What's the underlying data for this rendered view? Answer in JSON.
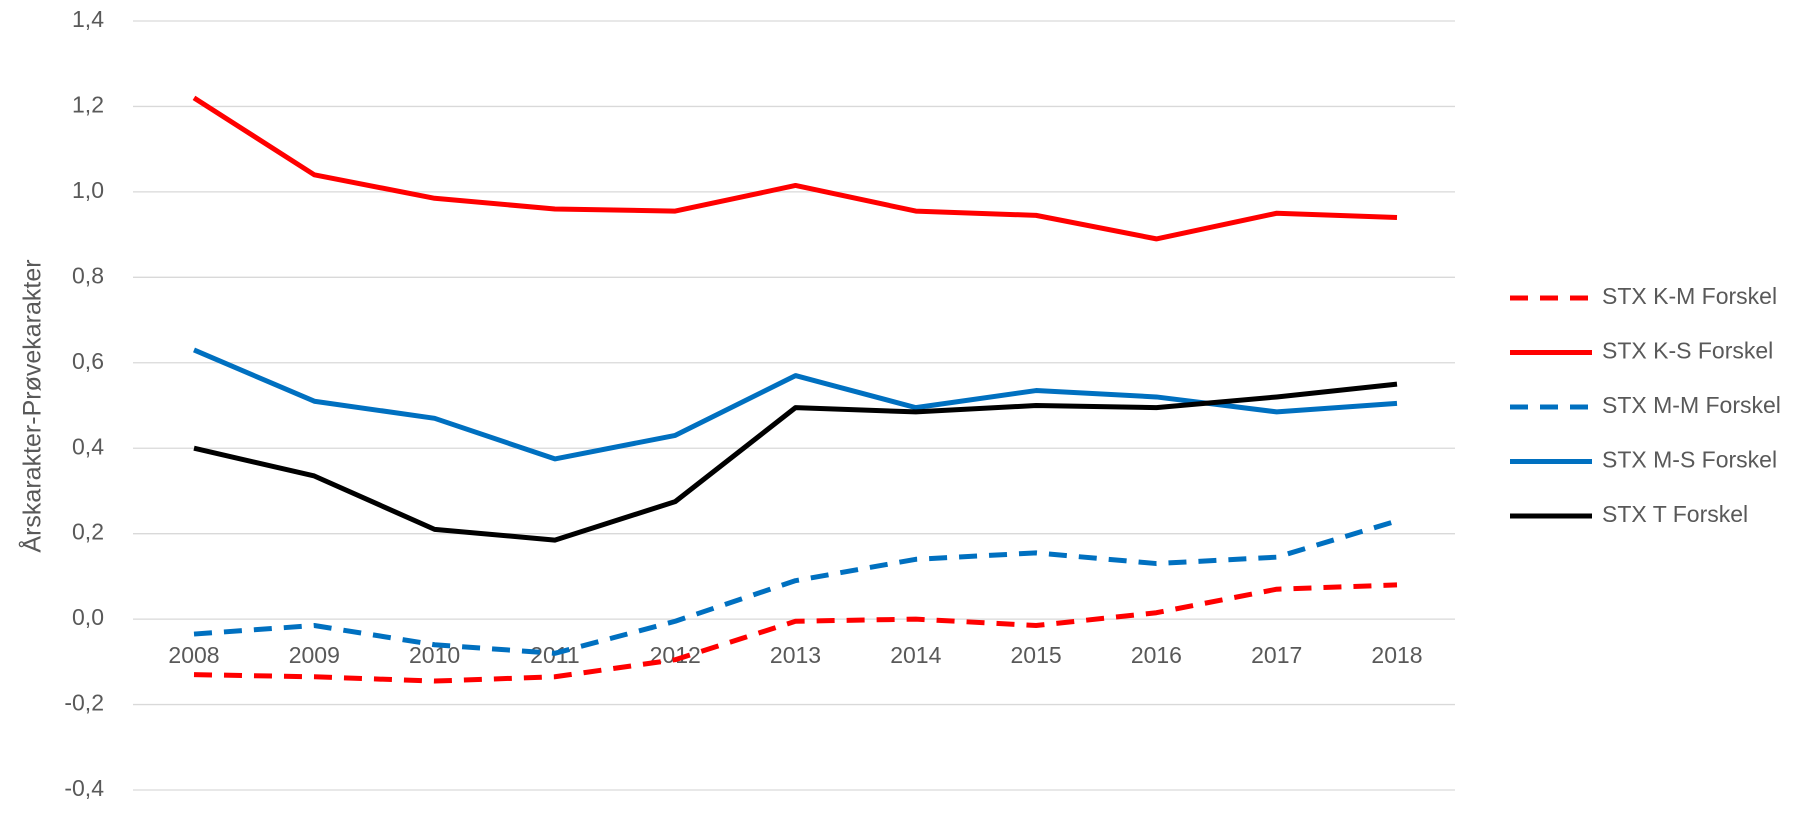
{
  "chart_data": {
    "type": "line",
    "y_label": "Årskarakter-Prøvekarakter",
    "categories": [
      "2008",
      "2009",
      "2010",
      "2011",
      "2012",
      "2013",
      "2014",
      "2015",
      "2016",
      "2017",
      "2018"
    ],
    "series": [
      {
        "name": "STX K-M Forskel",
        "color": "#ff0000",
        "dashed": true,
        "values": [
          -0.13,
          -0.135,
          -0.145,
          -0.135,
          -0.095,
          -0.005,
          0.0,
          -0.015,
          0.015,
          0.07,
          0.08
        ]
      },
      {
        "name": "STX K-S Forskel",
        "color": "#ff0000",
        "dashed": false,
        "values": [
          1.22,
          1.04,
          0.985,
          0.96,
          0.955,
          1.015,
          0.955,
          0.945,
          0.89,
          0.95,
          0.94
        ]
      },
      {
        "name": "STX M-M Forskel",
        "color": "#0070c0",
        "dashed": true,
        "values": [
          -0.035,
          -0.015,
          -0.06,
          -0.08,
          -0.005,
          0.09,
          0.14,
          0.155,
          0.13,
          0.145,
          0.23
        ]
      },
      {
        "name": "STX M-S Forskel",
        "color": "#0070c0",
        "dashed": false,
        "values": [
          0.63,
          0.51,
          0.47,
          0.375,
          0.43,
          0.57,
          0.495,
          0.535,
          0.52,
          0.485,
          0.505
        ]
      },
      {
        "name": "STX T Forskel",
        "color": "#000000",
        "dashed": false,
        "values": [
          0.4,
          0.335,
          0.21,
          0.185,
          0.275,
          0.495,
          0.485,
          0.5,
          0.495,
          0.52,
          0.55
        ]
      }
    ],
    "ylim": [
      -0.4,
      1.4
    ],
    "yticks": [
      {
        "value": -0.4,
        "label": "-0,4"
      },
      {
        "value": -0.2,
        "label": "-0,2"
      },
      {
        "value": 0,
        "label": "0,0"
      },
      {
        "value": 0.2,
        "label": "0,2"
      },
      {
        "value": 0.4,
        "label": "0,4"
      },
      {
        "value": 0.6,
        "label": "0,6"
      },
      {
        "value": 0.8,
        "label": "0,8"
      },
      {
        "value": 1.0,
        "label": "1,0"
      },
      {
        "value": 1.2,
        "label": "1,2"
      },
      {
        "value": 1.4,
        "label": "1,4"
      }
    ],
    "grid": true,
    "legend": "right"
  }
}
